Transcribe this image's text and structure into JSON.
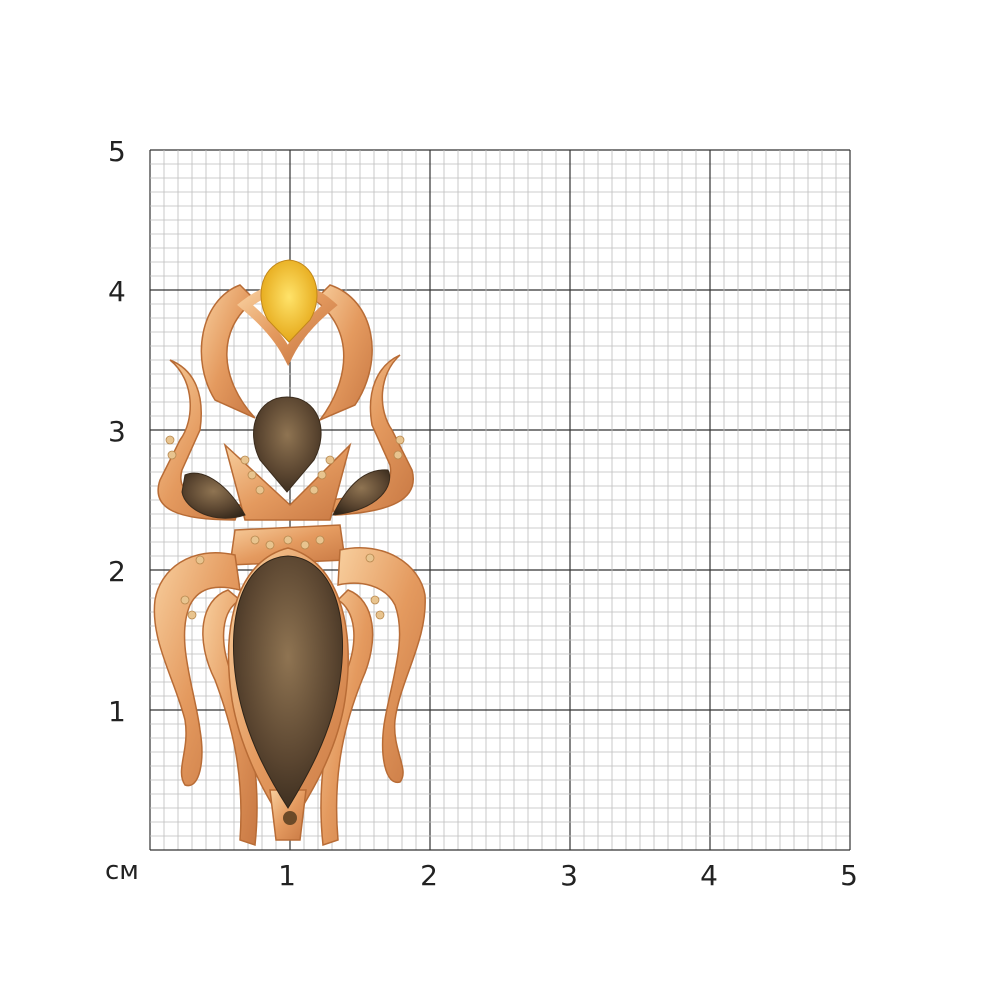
{
  "scale": {
    "unit": "см",
    "y_labels": [
      "5",
      "4",
      "3",
      "2",
      "1"
    ],
    "x_labels": [
      "1",
      "2",
      "3",
      "4",
      "5"
    ]
  },
  "product": {
    "type": "brooch",
    "icon": "beetle-brooch",
    "colors": {
      "gold": "#e9a66f",
      "citrine": "#f2c023",
      "smoky_quartz": "#5a4530",
      "grid_minor": "#bdbdbd",
      "grid_major": "#333333"
    }
  }
}
